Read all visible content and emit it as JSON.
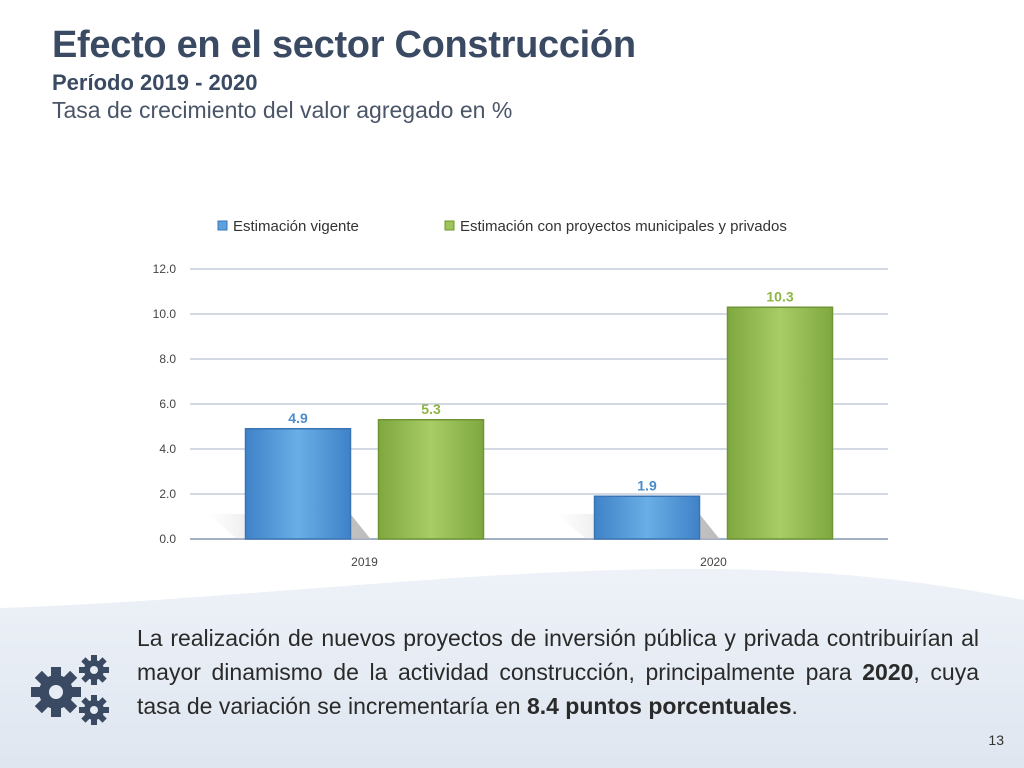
{
  "slide": {
    "title": "Efecto en el sector Construcción",
    "subtitle": "Período 2019 - 2020",
    "description": "Tasa de crecimiento del valor agregado en %",
    "page_number": "13",
    "footer": {
      "part1": "La realización de nuevos proyectos de inversión pública y privada contribuirían al mayor dinamismo de la actividad construcción, principalmente para ",
      "bold1": "2020",
      "part2": ", cuya tasa de variación se incrementaría en ",
      "bold2": "8.4 puntos porcentuales",
      "part3": "."
    },
    "icon": "gears-icon"
  },
  "chart_data": {
    "type": "bar",
    "categories": [
      "2019",
      "2020"
    ],
    "series": [
      {
        "name": "Estimación vigente",
        "values": [
          4.9,
          1.9
        ],
        "color": "#5ea2dd"
      },
      {
        "name": "Estimación con proyectos municipales y privados",
        "values": [
          5.3,
          10.3
        ],
        "color": "#9fc55a"
      }
    ],
    "ylim": [
      0,
      12
    ],
    "yticks": [
      "0.0",
      "2.0",
      "4.0",
      "6.0",
      "8.0",
      "10.0",
      "12.0"
    ],
    "value_labels": [
      [
        "4.9",
        "1.9"
      ],
      [
        "5.3",
        "10.3"
      ]
    ],
    "label_colors": [
      "#4a8ccc",
      "#8fb545"
    ],
    "grid": true,
    "legend_position": "top"
  }
}
